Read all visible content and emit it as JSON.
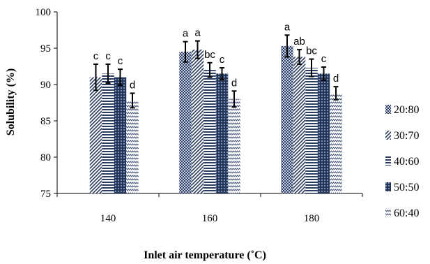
{
  "chart_data": {
    "type": "bar",
    "categories": [
      "140",
      "160",
      "180"
    ],
    "xlabel": "Inlet air temperature (˚C)",
    "ylabel": "Solubility (%)",
    "ylim": [
      75,
      100
    ],
    "yticks": [
      "75",
      "80",
      "85",
      "90",
      "95",
      "100"
    ],
    "legend_position": "right",
    "series": [
      {
        "name": "20:80",
        "pattern": "dark-checker",
        "values": [
          null,
          94.5,
          95.3
        ],
        "errors": [
          null,
          1.4,
          1.5
        ],
        "labels": [
          "",
          "a",
          "a"
        ]
      },
      {
        "name": "30:70",
        "pattern": "diagonal-lines",
        "values": [
          91.0,
          94.8,
          93.8
        ],
        "errors": [
          1.8,
          1.2,
          1.0
        ],
        "labels": [
          "c",
          "a",
          "ab"
        ]
      },
      {
        "name": "40:60",
        "pattern": "horizontal-lines",
        "values": [
          91.5,
          92.0,
          92.3
        ],
        "errors": [
          1.3,
          1.0,
          1.2
        ],
        "labels": [
          "c",
          "bc",
          "bc"
        ]
      },
      {
        "name": "50:50",
        "pattern": "dark-grid",
        "values": [
          91.0,
          91.5,
          91.5
        ],
        "errors": [
          1.1,
          0.8,
          0.9
        ],
        "labels": [
          "c",
          "c",
          "c"
        ]
      },
      {
        "name": "60:40",
        "pattern": "zigzag",
        "values": [
          87.8,
          88.0,
          88.8
        ],
        "errors": [
          1.0,
          1.1,
          0.9
        ],
        "labels": [
          "d",
          "d",
          "d"
        ]
      }
    ]
  }
}
